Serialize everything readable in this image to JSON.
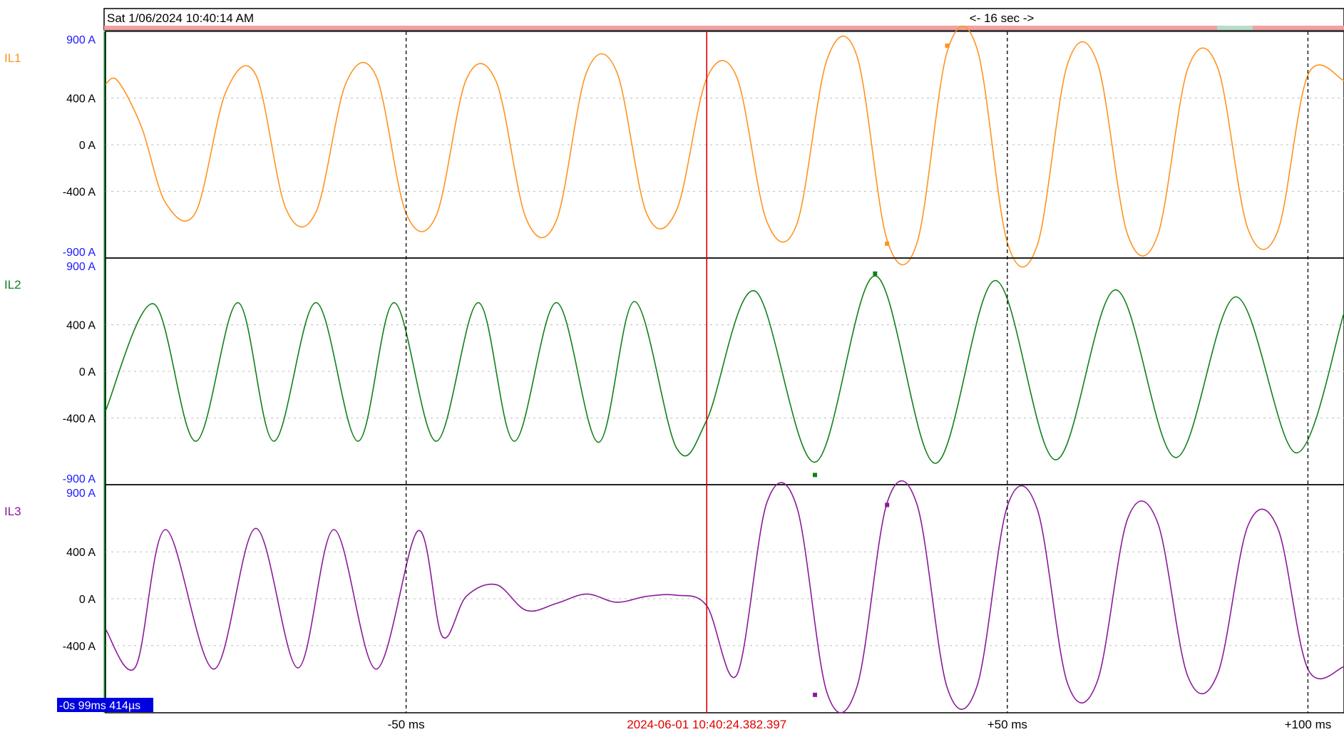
{
  "header": {
    "timestamp": "Sat 1/06/2024 10:40:14 AM",
    "span": "<- 16 sec ->"
  },
  "cursor": {
    "label": "2024-06-01 10:40:24.382.397",
    "color": "#e00000"
  },
  "readout": {
    "label": "-0s 99ms 414µs",
    "color": "#0000e0"
  },
  "x_axis": {
    "ticks": [
      {
        "ms": -50,
        "label": "-50 ms"
      },
      {
        "ms": 50,
        "label": "+50 ms"
      },
      {
        "ms": 100,
        "label": "+100 ms"
      }
    ],
    "range_ms": [
      -100,
      106
    ]
  },
  "chart_data": {
    "type": "line",
    "x_unit": "ms",
    "y_unit": "A",
    "ylim": [
      -900,
      900
    ],
    "grid": true,
    "channels": [
      {
        "name": "IL1",
        "color": "#ff9320",
        "yticks": [
          "900 A",
          "400 A",
          "0 A",
          "-400 A",
          "-900 A"
        ],
        "samples": {
          "x": [
            -100,
            -98,
            -94,
            -90,
            -85,
            -80,
            -75,
            -70,
            -65,
            -60,
            -55,
            -50,
            -45,
            -40,
            -35,
            -30,
            -25,
            -20,
            -15,
            -10,
            -5,
            0,
            5,
            10,
            15,
            20,
            25,
            30,
            35,
            40,
            45,
            50,
            55,
            60,
            65,
            70,
            75,
            80,
            85,
            90,
            95,
            100,
            106
          ],
          "y": [
            520,
            550,
            150,
            -500,
            -580,
            450,
            600,
            -550,
            -580,
            530,
            590,
            -590,
            -610,
            560,
            540,
            -640,
            -650,
            620,
            630,
            -590,
            -560,
            570,
            580,
            -660,
            -680,
            730,
            760,
            -820,
            -840,
            800,
            820,
            -840,
            -860,
            690,
            700,
            -770,
            -780,
            650,
            660,
            -720,
            -740,
            600,
            550
          ],
          "peaks": [
            {
              "x": 30,
              "y": -850
            },
            {
              "x": 40,
              "y": 850
            }
          ]
        }
      },
      {
        "name": "IL2",
        "color": "#10801a",
        "yticks": [
          "900 A",
          "400 A",
          "0 A",
          "-400 A",
          "-900 A"
        ],
        "samples": {
          "x": [
            -100,
            -92,
            -85,
            -78,
            -72,
            -65,
            -58,
            -52,
            -45,
            -38,
            -32,
            -25,
            -18,
            -12,
            -5,
            0,
            8,
            18,
            28,
            38,
            48,
            58,
            68,
            78,
            88,
            98,
            106
          ],
          "y": [
            -340,
            580,
            -600,
            590,
            -600,
            590,
            -600,
            590,
            -600,
            590,
            -600,
            590,
            -610,
            600,
            -660,
            -420,
            690,
            -780,
            820,
            -790,
            780,
            -760,
            700,
            -740,
            640,
            -700,
            500
          ],
          "peaks": [
            {
              "x": 18,
              "y": -890
            },
            {
              "x": 28,
              "y": 840
            }
          ]
        }
      },
      {
        "name": "IL3",
        "color": "#8b1a9a",
        "yticks": [
          "900 A",
          "400 A",
          "0 A",
          "-400 A"
        ],
        "samples": {
          "x": [
            -100,
            -95,
            -90,
            -82,
            -75,
            -68,
            -62,
            -55,
            -48,
            -44,
            -40,
            -35,
            -30,
            -25,
            -20,
            -15,
            -10,
            -5,
            0,
            5,
            10,
            15,
            20,
            25,
            30,
            35,
            40,
            45,
            50,
            55,
            60,
            65,
            70,
            75,
            80,
            85,
            90,
            95,
            100,
            106
          ],
          "y": [
            -260,
            -580,
            590,
            -600,
            600,
            -590,
            590,
            -600,
            580,
            -320,
            20,
            120,
            -100,
            -40,
            40,
            -30,
            20,
            30,
            -60,
            -650,
            820,
            780,
            -800,
            -750,
            820,
            800,
            -760,
            -740,
            790,
            760,
            -720,
            -700,
            680,
            650,
            -660,
            -640,
            620,
            600,
            -600,
            -580
          ],
          "peaks": [
            {
              "x": 18,
              "y": -820
            },
            {
              "x": 30,
              "y": 800
            }
          ]
        }
      }
    ]
  }
}
